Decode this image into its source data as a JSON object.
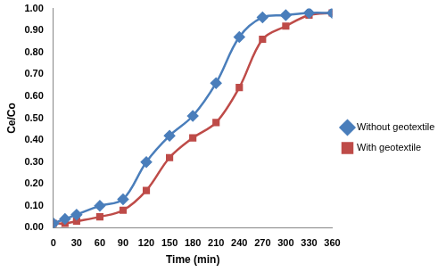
{
  "chart_data": {
    "type": "line",
    "x_label": "Time (min)",
    "y_label": "Ce/Co",
    "x": [
      0,
      15,
      30,
      60,
      90,
      120,
      150,
      180,
      210,
      240,
      270,
      300,
      330,
      360
    ],
    "series": [
      {
        "name": "Without geotextile",
        "color": "#4a7ebb",
        "marker": "diamond",
        "line_style": "smooth",
        "values": [
          0.02,
          0.04,
          0.06,
          0.1,
          0.13,
          0.3,
          0.42,
          0.51,
          0.66,
          0.87,
          0.96,
          0.97,
          0.98,
          0.98
        ]
      },
      {
        "name": "With geotextile",
        "color": "#be4b48",
        "marker": "square",
        "line_style": "smooth",
        "values": [
          0.02,
          0.02,
          0.03,
          0.05,
          0.08,
          0.17,
          0.32,
          0.41,
          0.48,
          0.64,
          0.86,
          0.92,
          0.97,
          0.98
        ]
      }
    ],
    "xlim": [
      0,
      360
    ],
    "xticks": [
      0,
      30,
      60,
      90,
      120,
      150,
      180,
      210,
      240,
      270,
      300,
      330,
      360
    ],
    "ylim": [
      0,
      1
    ],
    "yticks": [
      {
        "value": 0,
        "label": "0.00"
      },
      {
        "value": 0.1,
        "label": "0.10"
      },
      {
        "value": 0.2,
        "label": "0.20"
      },
      {
        "value": 0.3,
        "label": "0.30"
      },
      {
        "value": 0.4,
        "label": "0.40"
      },
      {
        "value": 0.5,
        "label": "0.50"
      },
      {
        "value": 0.6,
        "label": "0.60"
      },
      {
        "value": 0.7,
        "label": "0.70"
      },
      {
        "value": 0.8,
        "label": "0.80"
      },
      {
        "value": 0.9,
        "label": "0.90"
      },
      {
        "value": 1,
        "label": "1.00"
      }
    ],
    "grid": false,
    "legend": "right"
  }
}
